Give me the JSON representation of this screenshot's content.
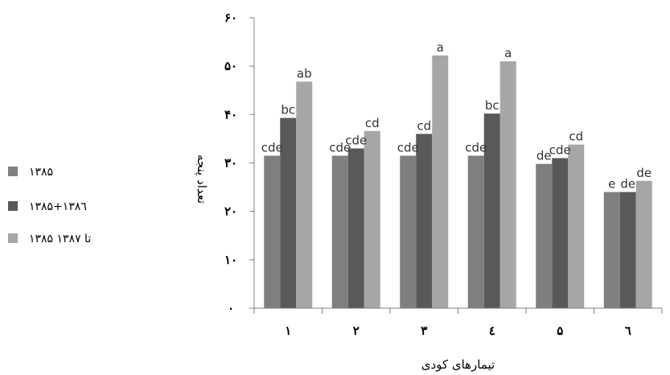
{
  "chart_data": {
    "type": "bar",
    "title": "",
    "xlabel": "تیمارهای کودی",
    "ylabel": "تعداد پنجه",
    "ylim": [
      0,
      60
    ],
    "yticks": [
      "۰",
      "۱۰",
      "۲۰",
      "۳۰",
      "۴۰",
      "۵۰",
      "۶۰"
    ],
    "categories": [
      "۱",
      "۲",
      "۳",
      "٤",
      "۵",
      "٦"
    ],
    "series": [
      {
        "name": "۱۳۸۵",
        "color": "#7f7f7f",
        "values": [
          31.5,
          31.5,
          31.5,
          31.5,
          29.8,
          24
        ],
        "labels": [
          "cde",
          "cde",
          "cde",
          "cde",
          "de",
          "e"
        ]
      },
      {
        "name": "۱۳۸۵+۱۳۸٦",
        "color": "#595959",
        "values": [
          39.3,
          33,
          36,
          40.2,
          31,
          24
        ],
        "labels": [
          "bc",
          "cde",
          "cd",
          "bc",
          "cde",
          "de"
        ]
      },
      {
        "name": "۱۳۸۵ تا ۱۳۸۷",
        "color": "#a6a6a6",
        "values": [
          46.8,
          36.6,
          52.2,
          51,
          33.8,
          26.3
        ],
        "labels": [
          "ab",
          "cd",
          "a",
          "a",
          "cd",
          "de"
        ]
      }
    ],
    "legend_position": "left",
    "grid": false
  }
}
